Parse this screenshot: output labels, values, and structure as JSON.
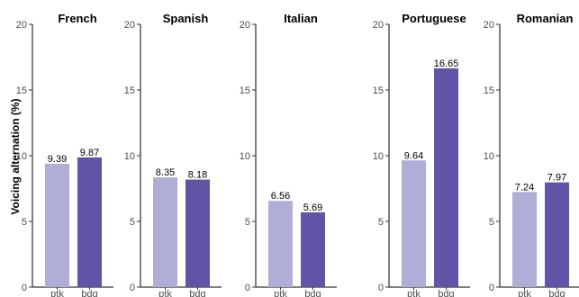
{
  "chart_data": {
    "type": "bar",
    "ylabel": "Voicing alternation (%)",
    "ylim": [
      0,
      20
    ],
    "yticks": [
      0,
      5,
      10,
      15,
      20
    ],
    "categories": [
      "ptk",
      "bdg"
    ],
    "colors": [
      "#aeaed6",
      "#6154a6"
    ],
    "panels": [
      {
        "title": "French",
        "values": [
          9.39,
          9.87
        ],
        "labels": [
          "9.39",
          "9.87"
        ]
      },
      {
        "title": "Spanish",
        "values": [
          8.35,
          8.18
        ],
        "labels": [
          "8.35",
          "8.18"
        ]
      },
      {
        "title": "Italian",
        "values": [
          6.56,
          5.69
        ],
        "labels": [
          "6.56",
          "5.69"
        ]
      },
      {
        "title": "Portuguese",
        "values": [
          9.64,
          16.65
        ],
        "labels": [
          "9.64",
          "16.65"
        ]
      },
      {
        "title": "Romanian",
        "values": [
          7.24,
          7.97
        ],
        "labels": [
          "7.24",
          "7.97"
        ]
      }
    ]
  }
}
